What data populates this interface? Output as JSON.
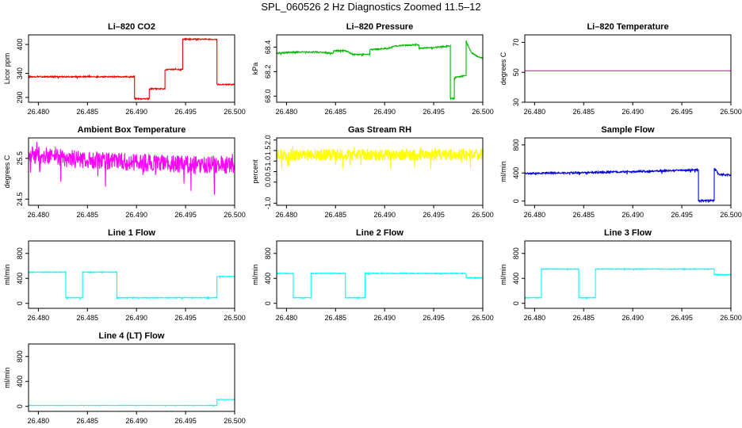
{
  "figure": {
    "title": "SPL_060526  2 Hz Diagnostics Zoomed 11.5–12"
  },
  "colors": {
    "red": "#ee0000",
    "green": "#00bb00",
    "magenta": "#ff00ff",
    "yellow": "#ffff00",
    "blue": "#0000dd",
    "cyan": "#00ffff"
  },
  "chart_data": [
    {
      "type": "line",
      "title": "Li–820 CO2",
      "ylabel": "Licor ppm",
      "color": "red",
      "xlim": [
        26.479,
        26.5
      ],
      "ylim": [
        280,
        420
      ],
      "xticks": [
        "26.480",
        "26.485",
        "26.490",
        "26.495",
        "26.500"
      ],
      "yticks": [
        290,
        340,
        400
      ],
      "noise": 1.2,
      "points": [
        [
          26.479,
          333
        ],
        [
          26.4898,
          333
        ],
        [
          26.4898,
          287
        ],
        [
          26.4913,
          287
        ],
        [
          26.4913,
          308
        ],
        [
          26.4929,
          308
        ],
        [
          26.4929,
          348
        ],
        [
          26.4947,
          348
        ],
        [
          26.4947,
          411
        ],
        [
          26.4982,
          411
        ],
        [
          26.4982,
          317
        ],
        [
          26.5,
          317
        ]
      ]
    },
    {
      "type": "line",
      "title": "Li–820 Pressure",
      "ylabel": "kPa",
      "color": "green",
      "xlim": [
        26.479,
        26.5
      ],
      "ylim": [
        67.95,
        68.5
      ],
      "xticks": [
        "26.480",
        "26.485",
        "26.490",
        "26.495",
        "26.500"
      ],
      "yticks": [
        "68.0",
        "68.2",
        "68.4"
      ],
      "noise": 0.005,
      "points": [
        [
          26.479,
          68.35
        ],
        [
          26.481,
          68.36
        ],
        [
          26.483,
          68.36
        ],
        [
          26.4848,
          68.35
        ],
        [
          26.4848,
          68.37
        ],
        [
          26.486,
          68.37
        ],
        [
          26.4868,
          68.34
        ],
        [
          26.4885,
          68.34
        ],
        [
          26.4885,
          68.38
        ],
        [
          26.4905,
          68.39
        ],
        [
          26.491,
          68.41
        ],
        [
          26.4935,
          68.42
        ],
        [
          26.4935,
          68.39
        ],
        [
          26.4955,
          68.4
        ],
        [
          26.4967,
          68.41
        ],
        [
          26.4967,
          67.98
        ],
        [
          26.4971,
          67.98
        ],
        [
          26.4971,
          68.15
        ],
        [
          26.4983,
          68.17
        ],
        [
          26.4983,
          68.45
        ],
        [
          26.4988,
          68.36
        ],
        [
          26.4995,
          68.32
        ],
        [
          26.5,
          68.31
        ]
      ]
    },
    {
      "type": "line",
      "title": "Li–820 Temperature",
      "ylabel": "degrees C",
      "color": "magenta",
      "xlim": [
        26.479,
        26.5
      ],
      "ylim": [
        30,
        75
      ],
      "xticks": [
        "26.480",
        "26.485",
        "26.490",
        "26.495",
        "26.500"
      ],
      "yticks": [
        30,
        50,
        70
      ],
      "noise": 0,
      "points": [
        [
          26.479,
          51
        ],
        [
          26.5,
          51
        ]
      ]
    },
    {
      "type": "line",
      "title": "Ambient Box Temperature",
      "ylabel": "degrees C",
      "color": "magenta",
      "xlim": [
        26.479,
        26.5
      ],
      "ylim": [
        24.35,
        26.0
      ],
      "xticks": [
        "26.480",
        "26.485",
        "26.490",
        "26.495",
        "26.500"
      ],
      "yticks": [
        "24.5",
        "25.5"
      ],
      "noise": 0.22,
      "points": [
        [
          26.479,
          25.6
        ],
        [
          26.485,
          25.45
        ],
        [
          26.495,
          25.35
        ],
        [
          26.5,
          25.35
        ]
      ]
    },
    {
      "type": "line",
      "title": "Gas Stream RH",
      "ylabel": "percent",
      "color": "yellow",
      "xlim": [
        26.479,
        26.5
      ],
      "ylim": [
        -1.1,
        2.1
      ],
      "xticks": [
        "26.480",
        "26.485",
        "26.490",
        "26.495",
        "26.500"
      ],
      "yticks": [
        "-1.0",
        "0.0",
        "0.5",
        "1.0",
        "1.5",
        "2.0"
      ],
      "noise": 0.28,
      "points": [
        [
          26.479,
          1.3
        ],
        [
          26.5,
          1.3
        ]
      ]
    },
    {
      "type": "line",
      "title": "Sample Flow",
      "ylabel": "ml/min",
      "color": "blue",
      "xlim": [
        26.479,
        26.5
      ],
      "ylim": [
        -60,
        900
      ],
      "xticks": [
        "26.480",
        "26.485",
        "26.490",
        "26.495",
        "26.500"
      ],
      "yticks": [
        0,
        400,
        800
      ],
      "noise": 12,
      "points": [
        [
          26.479,
          395
        ],
        [
          26.485,
          405
        ],
        [
          26.49,
          420
        ],
        [
          26.4965,
          445
        ],
        [
          26.4967,
          445
        ],
        [
          26.4967,
          5
        ],
        [
          26.4983,
          5
        ],
        [
          26.4983,
          470
        ],
        [
          26.4988,
          380
        ],
        [
          26.5,
          370
        ]
      ]
    },
    {
      "type": "line",
      "title": "Line 1 Flow",
      "ylabel": "ml/min",
      "color": "cyan",
      "xlim": [
        26.479,
        26.5
      ],
      "ylim": [
        -80,
        1000
      ],
      "xticks": [
        "26.480",
        "26.485",
        "26.490",
        "26.495",
        "26.500"
      ],
      "yticks": [
        0,
        400,
        800
      ],
      "noise": 6,
      "points": [
        [
          26.479,
          500
        ],
        [
          26.4828,
          500
        ],
        [
          26.4828,
          90
        ],
        [
          26.4845,
          90
        ],
        [
          26.4845,
          500
        ],
        [
          26.488,
          500
        ],
        [
          26.488,
          90
        ],
        [
          26.4982,
          90
        ],
        [
          26.4982,
          430
        ],
        [
          26.5,
          430
        ]
      ]
    },
    {
      "type": "line",
      "title": "Line 2 Flow",
      "ylabel": "ml/min",
      "color": "cyan",
      "xlim": [
        26.479,
        26.5
      ],
      "ylim": [
        -80,
        1000
      ],
      "xticks": [
        "26.480",
        "26.485",
        "26.490",
        "26.495",
        "26.500"
      ],
      "yticks": [
        0,
        400,
        800
      ],
      "noise": 6,
      "points": [
        [
          26.479,
          480
        ],
        [
          26.4807,
          480
        ],
        [
          26.4807,
          90
        ],
        [
          26.4825,
          90
        ],
        [
          26.4825,
          480
        ],
        [
          26.486,
          480
        ],
        [
          26.486,
          90
        ],
        [
          26.488,
          90
        ],
        [
          26.488,
          480
        ],
        [
          26.4983,
          480
        ],
        [
          26.4983,
          410
        ],
        [
          26.5,
          410
        ]
      ]
    },
    {
      "type": "line",
      "title": "Line 3 Flow",
      "ylabel": "ml/min",
      "color": "cyan",
      "xlim": [
        26.479,
        26.5
      ],
      "ylim": [
        -80,
        1000
      ],
      "xticks": [
        "26.480",
        "26.485",
        "26.490",
        "26.495",
        "26.500"
      ],
      "yticks": [
        0,
        400,
        800
      ],
      "noise": 6,
      "points": [
        [
          26.479,
          90
        ],
        [
          26.4807,
          90
        ],
        [
          26.4807,
          550
        ],
        [
          26.4845,
          550
        ],
        [
          26.4845,
          90
        ],
        [
          26.4862,
          90
        ],
        [
          26.4862,
          550
        ],
        [
          26.4983,
          550
        ],
        [
          26.4983,
          460
        ],
        [
          26.5,
          460
        ]
      ]
    },
    {
      "type": "line",
      "title": "Line 4 (LT) Flow",
      "ylabel": "ml/min",
      "color": "cyan",
      "xlim": [
        26.479,
        26.5
      ],
      "ylim": [
        -80,
        1000
      ],
      "xticks": [
        "26.480",
        "26.485",
        "26.490",
        "26.495",
        "26.500"
      ],
      "yticks": [
        0,
        400,
        800
      ],
      "noise": 3,
      "points": [
        [
          26.479,
          15
        ],
        [
          26.4982,
          15
        ],
        [
          26.4982,
          110
        ],
        [
          26.5,
          110
        ]
      ]
    }
  ]
}
